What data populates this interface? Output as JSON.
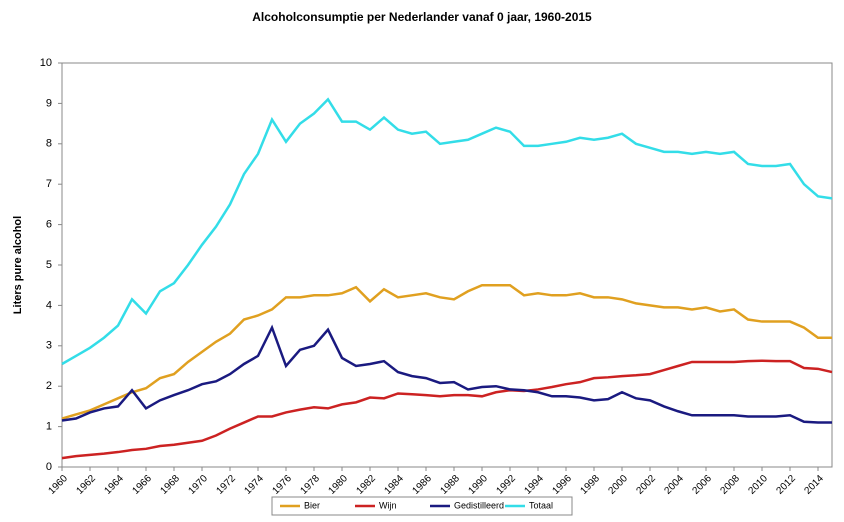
{
  "chart_data": {
    "type": "line",
    "title": "Alcoholconsumptie per Nederlander vanaf 0 jaar, 1960-2015",
    "y_label": "Liters pure alcohol",
    "x": [
      1960,
      1961,
      1962,
      1963,
      1964,
      1965,
      1966,
      1967,
      1968,
      1969,
      1970,
      1971,
      1972,
      1973,
      1974,
      1975,
      1976,
      1977,
      1978,
      1979,
      1980,
      1981,
      1982,
      1983,
      1984,
      1985,
      1986,
      1987,
      1988,
      1989,
      1990,
      1991,
      1992,
      1993,
      1994,
      1995,
      1996,
      1997,
      1998,
      1999,
      2000,
      2001,
      2002,
      2003,
      2004,
      2005,
      2006,
      2007,
      2008,
      2009,
      2010,
      2011,
      2012,
      2013,
      2014,
      2015
    ],
    "xlim": [
      1960,
      2015
    ],
    "xticks": [
      1960,
      1962,
      1964,
      1966,
      1968,
      1970,
      1972,
      1974,
      1976,
      1978,
      1980,
      1982,
      1984,
      1986,
      1988,
      1990,
      1992,
      1994,
      1996,
      1998,
      2000,
      2002,
      2004,
      2006,
      2008,
      2010,
      2012,
      2014
    ],
    "ylim": [
      0,
      10
    ],
    "yticks": [
      0,
      1,
      2,
      3,
      4,
      5,
      6,
      7,
      8,
      9,
      10
    ],
    "legend": "bottom",
    "series": [
      {
        "name": "Bier",
        "color": "#e0a020",
        "values": [
          1.2,
          1.3,
          1.4,
          1.55,
          1.7,
          1.85,
          1.95,
          2.2,
          2.3,
          2.6,
          2.85,
          3.1,
          3.3,
          3.65,
          3.75,
          3.9,
          4.2,
          4.2,
          4.25,
          4.25,
          4.3,
          4.45,
          4.1,
          4.4,
          4.2,
          4.25,
          4.3,
          4.2,
          4.15,
          4.35,
          4.5,
          4.5,
          4.5,
          4.25,
          4.3,
          4.25,
          4.25,
          4.3,
          4.2,
          4.2,
          4.15,
          4.05,
          4.0,
          3.95,
          3.95,
          3.9,
          3.95,
          3.85,
          3.9,
          3.65,
          3.6,
          3.6,
          3.6,
          3.45,
          3.2,
          3.2
        ]
      },
      {
        "name": "Wijn",
        "color": "#cc2222",
        "values": [
          0.22,
          0.27,
          0.3,
          0.33,
          0.37,
          0.42,
          0.45,
          0.52,
          0.55,
          0.6,
          0.65,
          0.78,
          0.95,
          1.1,
          1.25,
          1.25,
          1.35,
          1.42,
          1.48,
          1.45,
          1.55,
          1.6,
          1.72,
          1.7,
          1.82,
          1.8,
          1.78,
          1.75,
          1.78,
          1.78,
          1.75,
          1.85,
          1.9,
          1.88,
          1.92,
          1.98,
          2.05,
          2.1,
          2.2,
          2.22,
          2.25,
          2.27,
          2.3,
          2.4,
          2.5,
          2.6,
          2.6,
          2.6,
          2.6,
          2.62,
          2.63,
          2.62,
          2.62,
          2.45,
          2.43,
          2.35
        ]
      },
      {
        "name": "Gedistilleerd",
        "color": "#1a1a80",
        "values": [
          1.15,
          1.2,
          1.35,
          1.45,
          1.5,
          1.9,
          1.45,
          1.65,
          1.78,
          1.9,
          2.05,
          2.12,
          2.3,
          2.55,
          2.75,
          3.45,
          2.5,
          2.9,
          3.0,
          3.4,
          2.7,
          2.5,
          2.55,
          2.62,
          2.35,
          2.25,
          2.2,
          2.08,
          2.1,
          1.92,
          1.98,
          2.0,
          1.92,
          1.9,
          1.85,
          1.75,
          1.75,
          1.72,
          1.65,
          1.68,
          1.85,
          1.7,
          1.65,
          1.5,
          1.38,
          1.28,
          1.28,
          1.28,
          1.28,
          1.25,
          1.25,
          1.25,
          1.28,
          1.12,
          1.1,
          1.1
        ]
      },
      {
        "name": "Totaal",
        "color": "#33dde8",
        "values": [
          2.55,
          2.75,
          2.95,
          3.2,
          3.5,
          4.15,
          3.8,
          4.35,
          4.55,
          5.0,
          5.5,
          5.95,
          6.5,
          7.25,
          7.75,
          8.6,
          8.05,
          8.5,
          8.75,
          9.1,
          8.55,
          8.55,
          8.35,
          8.65,
          8.35,
          8.25,
          8.3,
          8.0,
          8.05,
          8.1,
          8.25,
          8.4,
          8.3,
          7.95,
          7.95,
          8.0,
          8.05,
          8.15,
          8.1,
          8.15,
          8.25,
          8.0,
          7.9,
          7.8,
          7.8,
          7.75,
          7.8,
          7.75,
          7.8,
          7.5,
          7.45,
          7.45,
          7.5,
          7.0,
          6.7,
          6.65
        ]
      }
    ]
  }
}
